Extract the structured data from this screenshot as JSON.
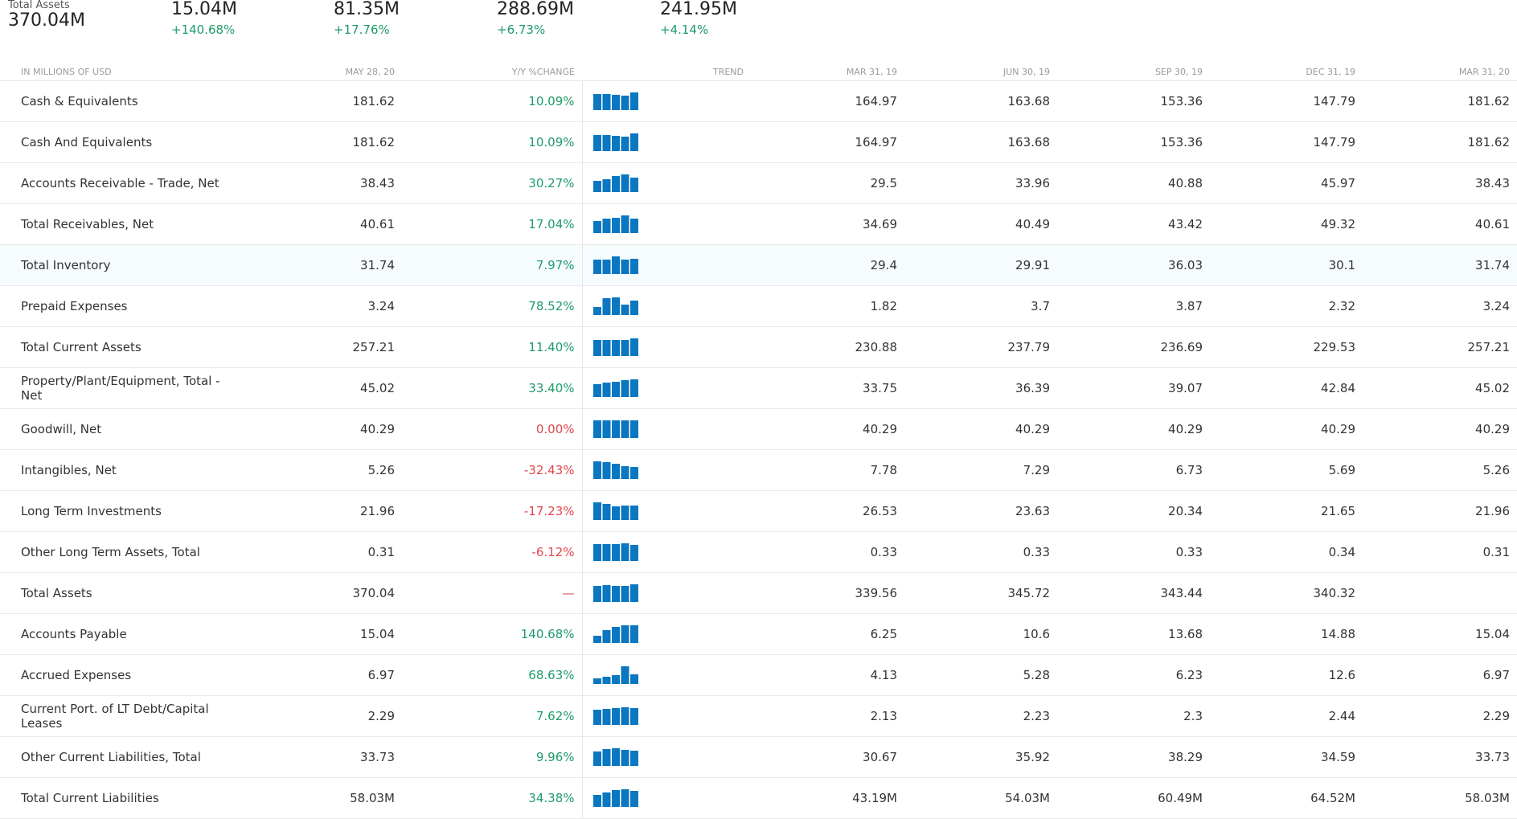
{
  "summary": [
    {
      "label": "Total Assets",
      "value": "370.04M",
      "pct": ""
    },
    {
      "label": "",
      "value": "15.04M",
      "pct": "+140.68%"
    },
    {
      "label": "",
      "value": "81.35M",
      "pct": "+17.76%"
    },
    {
      "label": "",
      "value": "288.69M",
      "pct": "+6.73%"
    },
    {
      "label": "",
      "value": "241.95M",
      "pct": "+4.14%"
    }
  ],
  "table": {
    "headers": [
      "IN MILLIONS OF USD",
      "MAY 28, 20",
      "Y/Y %CHANGE",
      "TREND",
      "MAR 31, 19",
      "JUN 30, 19",
      "SEP 30, 19",
      "DEC 31, 19",
      "MAR 31, 20"
    ],
    "trend_color": "#0a77c0",
    "pos_color": "#1e9b6a",
    "neg_color": "#e0474b",
    "rows": [
      {
        "name": "Cash & Equivalents",
        "latest": "181.62",
        "change": "10.09%",
        "sign": "pos",
        "q": [
          "164.97",
          "163.68",
          "153.36",
          "147.79",
          "181.62"
        ],
        "trend": [
          164.97,
          163.68,
          153.36,
          147.79,
          181.62
        ]
      },
      {
        "name": "Cash And Equivalents",
        "latest": "181.62",
        "change": "10.09%",
        "sign": "pos",
        "q": [
          "164.97",
          "163.68",
          "153.36",
          "147.79",
          "181.62"
        ],
        "trend": [
          164.97,
          163.68,
          153.36,
          147.79,
          181.62
        ]
      },
      {
        "name": "Accounts Receivable - Trade, Net",
        "latest": "38.43",
        "change": "30.27%",
        "sign": "pos",
        "q": [
          "29.5",
          "33.96",
          "40.88",
          "45.97",
          "38.43"
        ],
        "trend": [
          29.5,
          33.96,
          40.88,
          45.97,
          38.43
        ]
      },
      {
        "name": "Total Receivables, Net",
        "latest": "40.61",
        "change": "17.04%",
        "sign": "pos",
        "q": [
          "34.69",
          "40.49",
          "43.42",
          "49.32",
          "40.61"
        ],
        "trend": [
          34.69,
          40.49,
          43.42,
          49.32,
          40.61
        ]
      },
      {
        "name": "Total Inventory",
        "latest": "31.74",
        "change": "7.97%",
        "sign": "pos",
        "q": [
          "29.4",
          "29.91",
          "36.03",
          "30.1",
          "31.74"
        ],
        "trend": [
          29.4,
          29.91,
          36.03,
          30.1,
          31.74
        ],
        "highlight": true
      },
      {
        "name": "Prepaid Expenses",
        "latest": "3.24",
        "change": "78.52%",
        "sign": "pos",
        "q": [
          "1.82",
          "3.7",
          "3.87",
          "2.32",
          "3.24"
        ],
        "trend": [
          1.82,
          3.7,
          3.87,
          2.32,
          3.24
        ]
      },
      {
        "name": "Total Current Assets",
        "latest": "257.21",
        "change": "11.40%",
        "sign": "pos",
        "q": [
          "230.88",
          "237.79",
          "236.69",
          "229.53",
          "257.21"
        ],
        "trend": [
          230.88,
          237.79,
          236.69,
          229.53,
          257.21
        ]
      },
      {
        "name": "Property/Plant/Equipment, Total - Net",
        "latest": "45.02",
        "change": "33.40%",
        "sign": "pos",
        "q": [
          "33.75",
          "36.39",
          "39.07",
          "42.84",
          "45.02"
        ],
        "trend": [
          33.75,
          36.39,
          39.07,
          42.84,
          45.02
        ]
      },
      {
        "name": "Goodwill, Net",
        "latest": "40.29",
        "change": "0.00%",
        "sign": "neg",
        "q": [
          "40.29",
          "40.29",
          "40.29",
          "40.29",
          "40.29"
        ],
        "trend": [
          40.29,
          40.29,
          40.29,
          40.29,
          40.29
        ]
      },
      {
        "name": "Intangibles, Net",
        "latest": "5.26",
        "change": "-32.43%",
        "sign": "neg",
        "q": [
          "7.78",
          "7.29",
          "6.73",
          "5.69",
          "5.26"
        ],
        "trend": [
          7.78,
          7.29,
          6.73,
          5.69,
          5.26
        ]
      },
      {
        "name": "Long Term Investments",
        "latest": "21.96",
        "change": "-17.23%",
        "sign": "neg",
        "q": [
          "26.53",
          "23.63",
          "20.34",
          "21.65",
          "21.96"
        ],
        "trend": [
          26.53,
          23.63,
          20.34,
          21.65,
          21.96
        ]
      },
      {
        "name": "Other Long Term Assets, Total",
        "latest": "0.31",
        "change": "-6.12%",
        "sign": "neg",
        "q": [
          "0.33",
          "0.33",
          "0.33",
          "0.34",
          "0.31"
        ],
        "trend": [
          0.33,
          0.33,
          0.33,
          0.34,
          0.31
        ]
      },
      {
        "name": "Total Assets",
        "latest": "370.04",
        "change": "—",
        "sign": "neg",
        "q": [
          "339.56",
          "345.72",
          "343.44",
          "340.32",
          ""
        ],
        "trend": [
          339.56,
          345.72,
          343.44,
          340.32,
          370.04
        ]
      },
      {
        "name": "Accounts Payable",
        "latest": "15.04",
        "change": "140.68%",
        "sign": "pos",
        "q": [
          "6.25",
          "10.6",
          "13.68",
          "14.88",
          "15.04"
        ],
        "trend": [
          6.25,
          10.6,
          13.68,
          14.88,
          15.04
        ]
      },
      {
        "name": "Accrued Expenses",
        "latest": "6.97",
        "change": "68.63%",
        "sign": "pos",
        "q": [
          "4.13",
          "5.28",
          "6.23",
          "12.6",
          "6.97"
        ],
        "trend": [
          4.13,
          5.28,
          6.23,
          12.6,
          6.97
        ]
      },
      {
        "name": "Current Port. of LT Debt/Capital Leases",
        "latest": "2.29",
        "change": "7.62%",
        "sign": "pos",
        "q": [
          "2.13",
          "2.23",
          "2.3",
          "2.44",
          "2.29"
        ],
        "trend": [
          2.13,
          2.23,
          2.3,
          2.44,
          2.29
        ]
      },
      {
        "name": "Other Current Liabilities, Total",
        "latest": "33.73",
        "change": "9.96%",
        "sign": "pos",
        "q": [
          "30.67",
          "35.92",
          "38.29",
          "34.59",
          "33.73"
        ],
        "trend": [
          30.67,
          35.92,
          38.29,
          34.59,
          33.73
        ]
      },
      {
        "name": "Total Current Liabilities",
        "latest": "58.03M",
        "change": "34.38%",
        "sign": "pos",
        "q": [
          "43.19M",
          "54.03M",
          "60.49M",
          "64.52M",
          "58.03M"
        ],
        "trend": [
          43.19,
          54.03,
          60.49,
          64.52,
          58.03
        ]
      }
    ]
  }
}
